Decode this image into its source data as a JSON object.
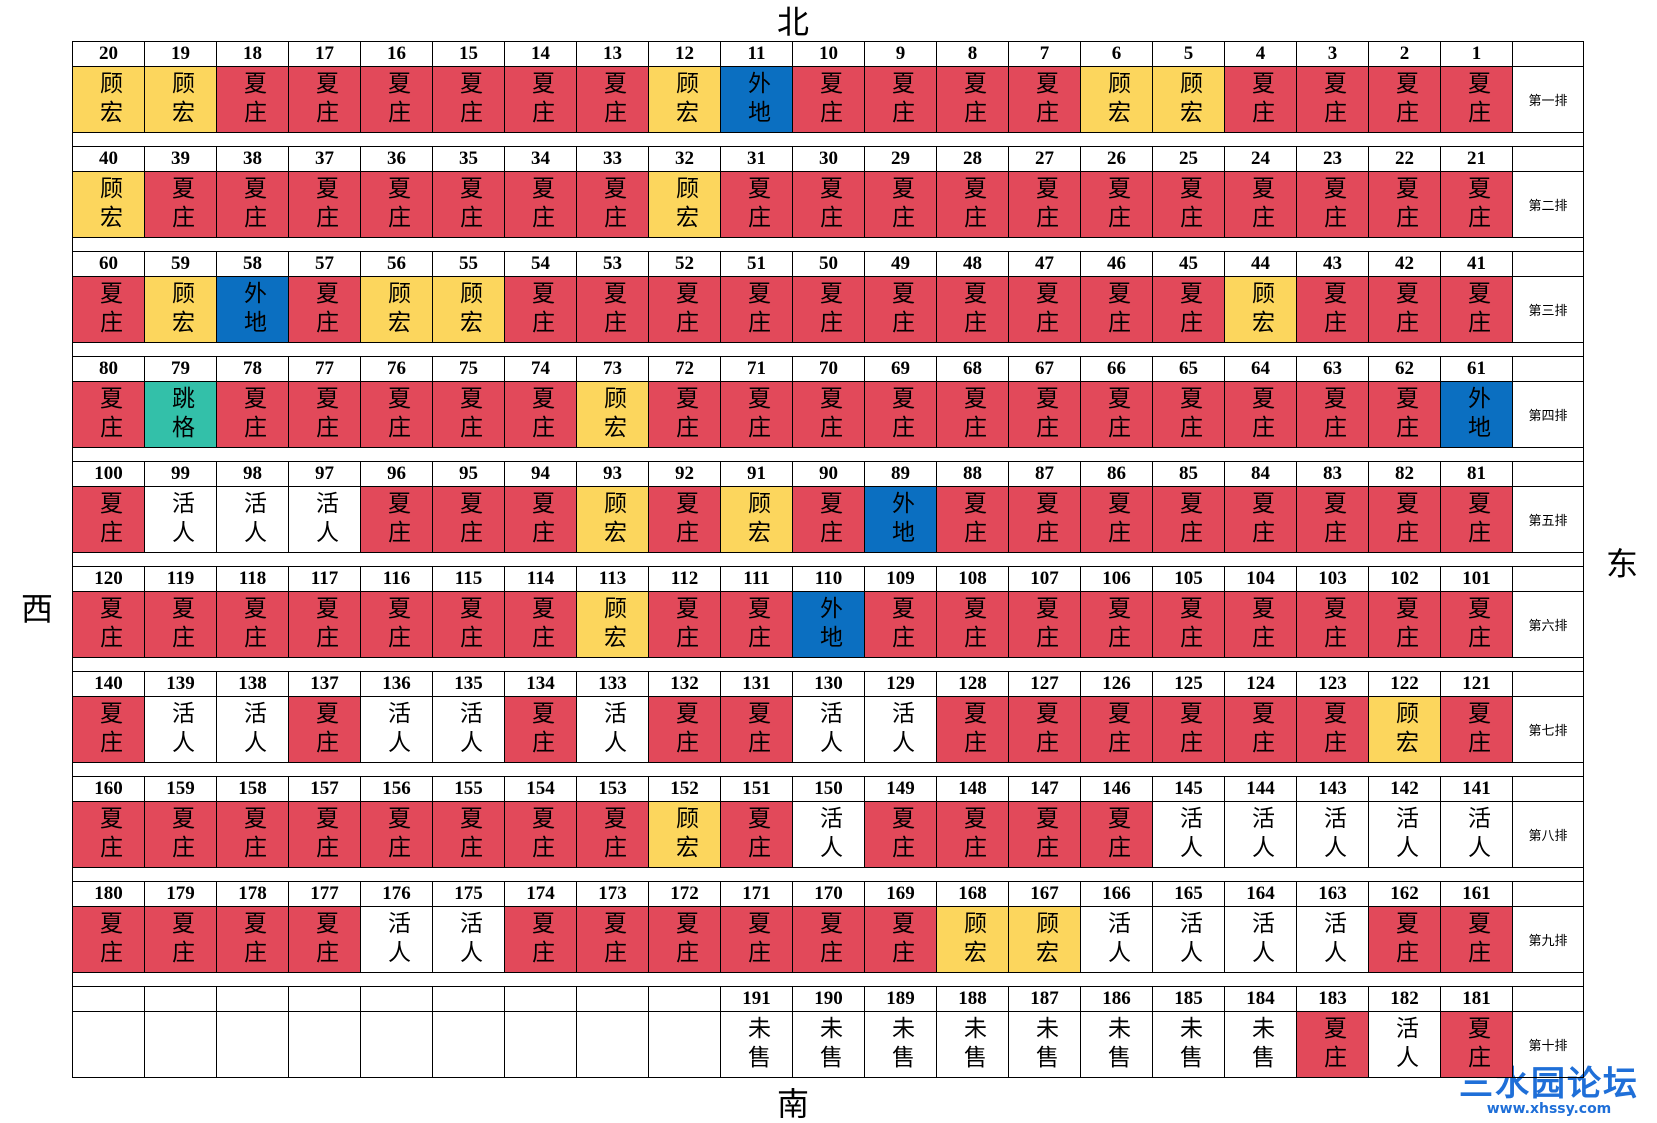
{
  "directions": {
    "north": "北",
    "south": "南",
    "east": "东",
    "west": "西"
  },
  "colors": {
    "夏庄": "#e2495a",
    "顾宏": "#fcd65d",
    "外地": "#0b6fc1",
    "跳格": "#33c0a9",
    "活人": "#ffffff",
    "未售": "#ffffff"
  },
  "rows": [
    {
      "label": "第一排",
      "seats": [
        [
          20,
          "顾宏"
        ],
        [
          19,
          "顾宏"
        ],
        [
          18,
          "夏庄"
        ],
        [
          17,
          "夏庄"
        ],
        [
          16,
          "夏庄"
        ],
        [
          15,
          "夏庄"
        ],
        [
          14,
          "夏庄"
        ],
        [
          13,
          "夏庄"
        ],
        [
          12,
          "顾宏"
        ],
        [
          11,
          "外地"
        ],
        [
          10,
          "夏庄"
        ],
        [
          9,
          "夏庄"
        ],
        [
          8,
          "夏庄"
        ],
        [
          7,
          "夏庄"
        ],
        [
          6,
          "顾宏"
        ],
        [
          5,
          "顾宏"
        ],
        [
          4,
          "夏庄"
        ],
        [
          3,
          "夏庄"
        ],
        [
          2,
          "夏庄"
        ],
        [
          1,
          "夏庄"
        ]
      ]
    },
    {
      "label": "第二排",
      "seats": [
        [
          40,
          "顾宏"
        ],
        [
          39,
          "夏庄"
        ],
        [
          38,
          "夏庄"
        ],
        [
          37,
          "夏庄"
        ],
        [
          36,
          "夏庄"
        ],
        [
          35,
          "夏庄"
        ],
        [
          34,
          "夏庄"
        ],
        [
          33,
          "夏庄"
        ],
        [
          32,
          "顾宏"
        ],
        [
          31,
          "夏庄"
        ],
        [
          30,
          "夏庄"
        ],
        [
          29,
          "夏庄"
        ],
        [
          28,
          "夏庄"
        ],
        [
          27,
          "夏庄"
        ],
        [
          26,
          "夏庄"
        ],
        [
          25,
          "夏庄"
        ],
        [
          24,
          "夏庄"
        ],
        [
          23,
          "夏庄"
        ],
        [
          22,
          "夏庄"
        ],
        [
          21,
          "夏庄"
        ]
      ]
    },
    {
      "label": "第三排",
      "seats": [
        [
          60,
          "夏庄"
        ],
        [
          59,
          "顾宏"
        ],
        [
          58,
          "外地"
        ],
        [
          57,
          "夏庄"
        ],
        [
          56,
          "顾宏"
        ],
        [
          55,
          "顾宏"
        ],
        [
          54,
          "夏庄"
        ],
        [
          53,
          "夏庄"
        ],
        [
          52,
          "夏庄"
        ],
        [
          51,
          "夏庄"
        ],
        [
          50,
          "夏庄"
        ],
        [
          49,
          "夏庄"
        ],
        [
          48,
          "夏庄"
        ],
        [
          47,
          "夏庄"
        ],
        [
          46,
          "夏庄"
        ],
        [
          45,
          "夏庄"
        ],
        [
          44,
          "顾宏"
        ],
        [
          43,
          "夏庄"
        ],
        [
          42,
          "夏庄"
        ],
        [
          41,
          "夏庄"
        ]
      ]
    },
    {
      "label": "第四排",
      "seats": [
        [
          80,
          "夏庄"
        ],
        [
          79,
          "跳格"
        ],
        [
          78,
          "夏庄"
        ],
        [
          77,
          "夏庄"
        ],
        [
          76,
          "夏庄"
        ],
        [
          75,
          "夏庄"
        ],
        [
          74,
          "夏庄"
        ],
        [
          73,
          "顾宏"
        ],
        [
          72,
          "夏庄"
        ],
        [
          71,
          "夏庄"
        ],
        [
          70,
          "夏庄"
        ],
        [
          69,
          "夏庄"
        ],
        [
          68,
          "夏庄"
        ],
        [
          67,
          "夏庄"
        ],
        [
          66,
          "夏庄"
        ],
        [
          65,
          "夏庄"
        ],
        [
          64,
          "夏庄"
        ],
        [
          63,
          "夏庄"
        ],
        [
          62,
          "夏庄"
        ],
        [
          61,
          "外地"
        ]
      ]
    },
    {
      "label": "第五排",
      "seats": [
        [
          100,
          "夏庄"
        ],
        [
          99,
          "活人"
        ],
        [
          98,
          "活人"
        ],
        [
          97,
          "活人"
        ],
        [
          96,
          "夏庄"
        ],
        [
          95,
          "夏庄"
        ],
        [
          94,
          "夏庄"
        ],
        [
          93,
          "顾宏"
        ],
        [
          92,
          "夏庄"
        ],
        [
          91,
          "顾宏"
        ],
        [
          90,
          "夏庄"
        ],
        [
          89,
          "外地"
        ],
        [
          88,
          "夏庄"
        ],
        [
          87,
          "夏庄"
        ],
        [
          86,
          "夏庄"
        ],
        [
          85,
          "夏庄"
        ],
        [
          84,
          "夏庄"
        ],
        [
          83,
          "夏庄"
        ],
        [
          82,
          "夏庄"
        ],
        [
          81,
          "夏庄"
        ]
      ]
    },
    {
      "label": "第六排",
      "seats": [
        [
          120,
          "夏庄"
        ],
        [
          119,
          "夏庄"
        ],
        [
          118,
          "夏庄"
        ],
        [
          117,
          "夏庄"
        ],
        [
          116,
          "夏庄"
        ],
        [
          115,
          "夏庄"
        ],
        [
          114,
          "夏庄"
        ],
        [
          113,
          "顾宏"
        ],
        [
          112,
          "夏庄"
        ],
        [
          111,
          "夏庄"
        ],
        [
          110,
          "外地"
        ],
        [
          109,
          "夏庄"
        ],
        [
          108,
          "夏庄"
        ],
        [
          107,
          "夏庄"
        ],
        [
          106,
          "夏庄"
        ],
        [
          105,
          "夏庄"
        ],
        [
          104,
          "夏庄"
        ],
        [
          103,
          "夏庄"
        ],
        [
          102,
          "夏庄"
        ],
        [
          101,
          "夏庄"
        ]
      ]
    },
    {
      "label": "第七排",
      "seats": [
        [
          140,
          "夏庄"
        ],
        [
          139,
          "活人"
        ],
        [
          138,
          "活人"
        ],
        [
          137,
          "夏庄"
        ],
        [
          136,
          "活人"
        ],
        [
          135,
          "活人"
        ],
        [
          134,
          "夏庄"
        ],
        [
          133,
          "活人"
        ],
        [
          132,
          "夏庄"
        ],
        [
          131,
          "夏庄"
        ],
        [
          130,
          "活人"
        ],
        [
          129,
          "活人"
        ],
        [
          128,
          "夏庄"
        ],
        [
          127,
          "夏庄"
        ],
        [
          126,
          "夏庄"
        ],
        [
          125,
          "夏庄"
        ],
        [
          124,
          "夏庄"
        ],
        [
          123,
          "夏庄"
        ],
        [
          122,
          "顾宏"
        ],
        [
          121,
          "夏庄"
        ]
      ]
    },
    {
      "label": "第八排",
      "seats": [
        [
          160,
          "夏庄"
        ],
        [
          159,
          "夏庄"
        ],
        [
          158,
          "夏庄"
        ],
        [
          157,
          "夏庄"
        ],
        [
          156,
          "夏庄"
        ],
        [
          155,
          "夏庄"
        ],
        [
          154,
          "夏庄"
        ],
        [
          153,
          "夏庄"
        ],
        [
          152,
          "顾宏"
        ],
        [
          151,
          "夏庄"
        ],
        [
          150,
          "活人"
        ],
        [
          149,
          "夏庄"
        ],
        [
          148,
          "夏庄"
        ],
        [
          147,
          "夏庄"
        ],
        [
          146,
          "夏庄"
        ],
        [
          145,
          "活人"
        ],
        [
          144,
          "活人"
        ],
        [
          143,
          "活人"
        ],
        [
          142,
          "活人"
        ],
        [
          141,
          "活人"
        ]
      ]
    },
    {
      "label": "第九排",
      "seats": [
        [
          180,
          "夏庄"
        ],
        [
          179,
          "夏庄"
        ],
        [
          178,
          "夏庄"
        ],
        [
          177,
          "夏庄"
        ],
        [
          176,
          "活人"
        ],
        [
          175,
          "活人"
        ],
        [
          174,
          "夏庄"
        ],
        [
          173,
          "夏庄"
        ],
        [
          172,
          "夏庄"
        ],
        [
          171,
          "夏庄"
        ],
        [
          170,
          "夏庄"
        ],
        [
          169,
          "夏庄"
        ],
        [
          168,
          "顾宏"
        ],
        [
          167,
          "顾宏"
        ],
        [
          166,
          "活人"
        ],
        [
          165,
          "活人"
        ],
        [
          164,
          "活人"
        ],
        [
          163,
          "活人"
        ],
        [
          162,
          "夏庄"
        ],
        [
          161,
          "夏庄"
        ]
      ]
    },
    {
      "label": "第十排",
      "seats": [
        null,
        null,
        null,
        null,
        null,
        null,
        null,
        null,
        null,
        [
          191,
          "未售"
        ],
        [
          190,
          "未售"
        ],
        [
          189,
          "未售"
        ],
        [
          188,
          "未售"
        ],
        [
          187,
          "未售"
        ],
        [
          186,
          "未售"
        ],
        [
          185,
          "未售"
        ],
        [
          184,
          "未售"
        ],
        [
          183,
          "夏庄"
        ],
        [
          182,
          "活人"
        ],
        [
          181,
          "夏庄"
        ]
      ]
    }
  ],
  "watermark": {
    "title": "三水园论坛",
    "url": "www.xhssy.com"
  }
}
